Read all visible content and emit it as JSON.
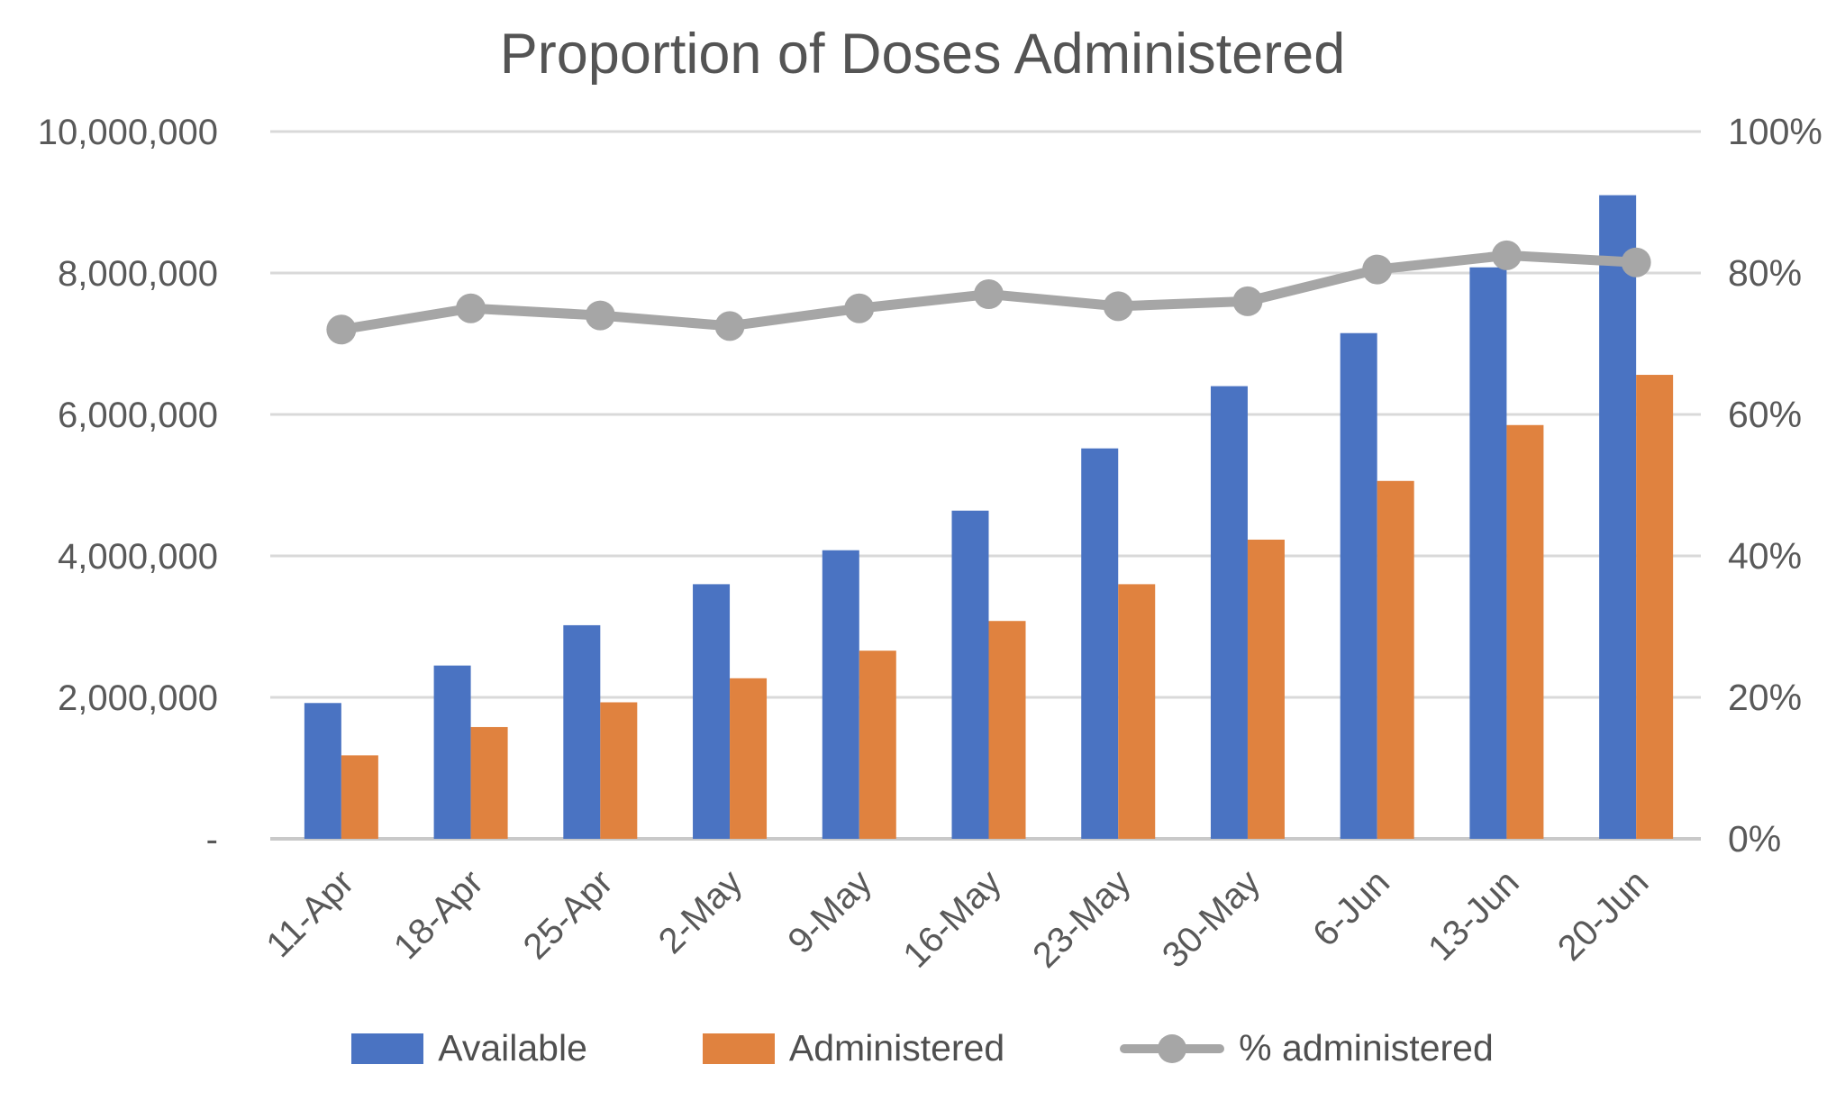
{
  "chart_data": {
    "type": "combo-bar-line",
    "title": "Proportion of Doses Administered",
    "categories": [
      "11-Apr",
      "18-Apr",
      "25-Apr",
      "2-May",
      "9-May",
      "16-May",
      "23-May",
      "30-May",
      "6-Jun",
      "13-Jun",
      "20-Jun"
    ],
    "series": [
      {
        "name": "Available",
        "type": "bar",
        "axis": "left",
        "color": "#4a73c2",
        "values": [
          1920000,
          2450000,
          3020000,
          3600000,
          4080000,
          4640000,
          5520000,
          6400000,
          7150000,
          8080000,
          9100000
        ]
      },
      {
        "name": "Administered",
        "type": "bar",
        "axis": "left",
        "color": "#e0823f",
        "values": [
          1180000,
          1580000,
          1930000,
          2270000,
          2660000,
          3080000,
          3600000,
          4230000,
          5060000,
          5850000,
          6560000
        ]
      },
      {
        "name": "% administered",
        "type": "line",
        "axis": "right",
        "color": "#a6a6a6",
        "values": [
          72,
          75,
          74,
          72.5,
          75,
          77,
          75.3,
          76,
          80.5,
          82.5,
          81.5
        ]
      }
    ],
    "left_axis": {
      "min": 0,
      "max": 10000000,
      "step": 2000000,
      "tick_labels": [
        "-",
        "2,000,000",
        "4,000,000",
        "6,000,000",
        "8,000,000",
        "10,000,000"
      ]
    },
    "right_axis": {
      "min": 0,
      "max": 100,
      "step": 20,
      "tick_labels": [
        "0%",
        "20%",
        "40%",
        "60%",
        "80%",
        "100%"
      ]
    },
    "grid": true,
    "legend_position": "bottom",
    "styles": {
      "grid_color": "#d9d9d9",
      "baseline_color": "#c9c9c9",
      "axis_text_color": "#595959",
      "title_color": "#545454"
    }
  }
}
